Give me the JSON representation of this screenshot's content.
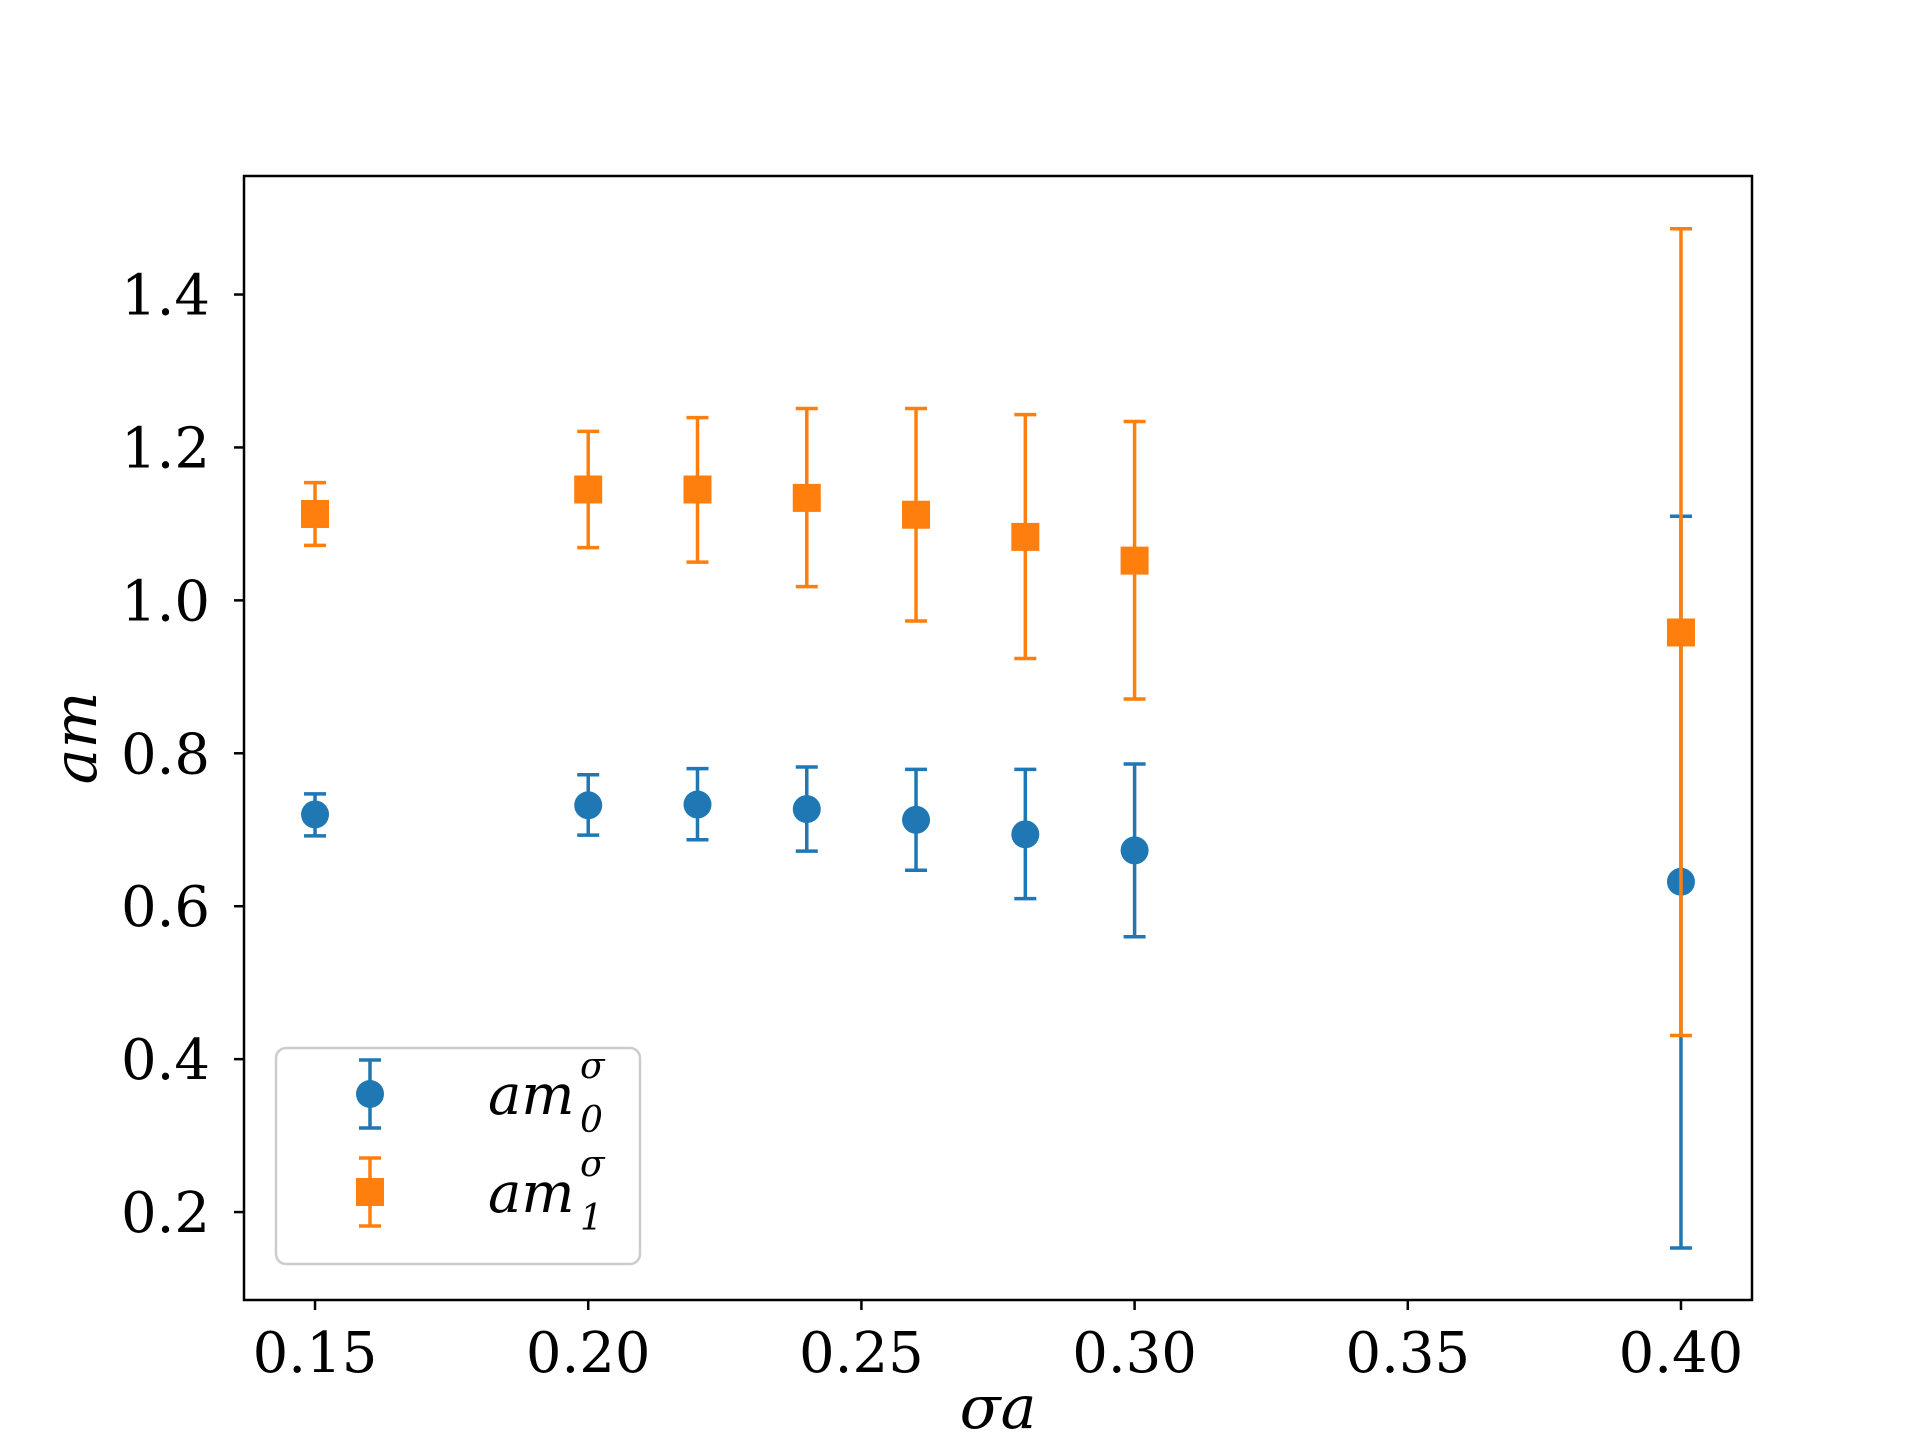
{
  "chart_data": {
    "type": "scatter",
    "title": "",
    "xlabel": "σa",
    "ylabel": "am",
    "xlim": [
      0.137,
      0.413
    ],
    "ylim": [
      0.085,
      1.555
    ],
    "grid": false,
    "legend_position": "lower-left",
    "x_ticks": [
      "0.15",
      "0.20",
      "0.25",
      "0.30",
      "0.35",
      "0.40"
    ],
    "x_tick_values": [
      0.15,
      0.2,
      0.25,
      0.3,
      0.35,
      0.4
    ],
    "y_ticks": [
      "0.2",
      "0.4",
      "0.6",
      "0.8",
      "1.0",
      "1.2",
      "1.4"
    ],
    "y_tick_values": [
      0.2,
      0.4,
      0.6,
      0.8,
      1.0,
      1.2,
      1.4
    ],
    "series": [
      {
        "name": "am_0^σ",
        "legend_base": "am",
        "legend_sup": "σ",
        "legend_sub": "0",
        "marker": "circle",
        "color": "#1f77b4",
        "x": [
          0.15,
          0.2,
          0.22,
          0.24,
          0.26,
          0.28,
          0.3,
          0.4
        ],
        "y": [
          0.72,
          0.732,
          0.733,
          0.727,
          0.713,
          0.694,
          0.673,
          0.632
        ],
        "err_low": [
          0.692,
          0.693,
          0.687,
          0.672,
          0.647,
          0.61,
          0.56,
          0.153
        ],
        "err_high": [
          0.747,
          0.772,
          0.78,
          0.782,
          0.779,
          0.779,
          0.786,
          1.11
        ]
      },
      {
        "name": "am_1^σ",
        "legend_base": "am",
        "legend_sup": "σ",
        "legend_sub": "1",
        "marker": "square",
        "color": "#ff7f0e",
        "x": [
          0.15,
          0.2,
          0.22,
          0.24,
          0.26,
          0.28,
          0.3,
          0.4
        ],
        "y": [
          1.113,
          1.145,
          1.145,
          1.134,
          1.112,
          1.083,
          1.052,
          0.958
        ],
        "err_low": [
          1.072,
          1.069,
          1.05,
          1.018,
          0.973,
          0.924,
          0.871,
          0.431
        ],
        "err_high": [
          1.154,
          1.221,
          1.239,
          1.251,
          1.251,
          1.243,
          1.234,
          1.486
        ]
      }
    ]
  }
}
